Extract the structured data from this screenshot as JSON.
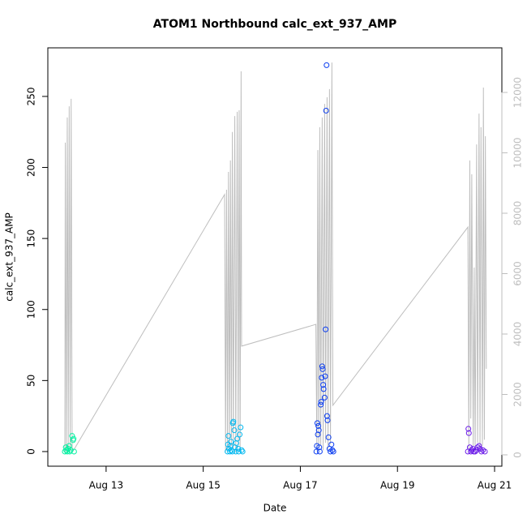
{
  "chart_data": {
    "type": "scatter-line",
    "title": "ATOM1 Northbound calc_ext_937_AMP",
    "xlabel": "Date",
    "ylabel": "calc_ext_937_AMP",
    "xlim": [
      11.8,
      21.15
    ],
    "xticks": [
      {
        "value": 13,
        "label": "Aug 13"
      },
      {
        "value": 15,
        "label": "Aug 15"
      },
      {
        "value": 17,
        "label": "Aug 17"
      },
      {
        "value": 19,
        "label": "Aug 19"
      },
      {
        "value": 21,
        "label": "Aug 21"
      }
    ],
    "ylim": [
      -10.3,
      284.2
    ],
    "yticks": [
      0,
      50,
      100,
      150,
      200,
      250
    ],
    "y2lim": [
      -376,
      13477
    ],
    "y2ticks": [
      0,
      2000,
      4000,
      6000,
      8000,
      10000,
      12000
    ],
    "y2color": "#bebebe",
    "line": {
      "axis": "y2",
      "color": "#bebebe",
      "x": [
        12.15,
        12.16,
        12.18,
        12.2,
        12.22,
        12.24,
        12.26,
        12.28,
        12.3,
        12.33,
        15.44,
        15.46,
        15.48,
        15.5,
        15.52,
        15.54,
        15.56,
        15.58,
        15.6,
        15.62,
        15.65,
        15.67,
        15.7,
        15.72,
        15.74,
        15.76,
        15.78,
        15.79,
        17.32,
        17.34,
        17.36,
        17.38,
        17.4,
        17.42,
        17.45,
        17.47,
        17.5,
        17.52,
        17.55,
        17.57,
        17.6,
        17.62,
        17.65,
        17.67,
        20.45,
        20.47,
        20.49,
        20.51,
        20.53,
        20.56,
        20.58,
        20.6,
        20.63,
        20.65,
        20.68,
        20.7,
        20.72,
        20.75,
        20.77,
        20.79,
        20.81,
        20.83
      ],
      "values": [
        100,
        10340,
        100,
        11170,
        150,
        11540,
        120,
        11790,
        200,
        150,
        8620,
        100,
        8780,
        200,
        9370,
        150,
        9750,
        300,
        10690,
        200,
        11220,
        100,
        11360,
        250,
        11410,
        150,
        12700,
        3600,
        4320,
        150,
        10090,
        200,
        10850,
        300,
        11170,
        150,
        11620,
        400,
        11840,
        200,
        12110,
        350,
        12990,
        1640,
        7540,
        200,
        9750,
        1200,
        9290,
        300,
        6200,
        150,
        10280,
        400,
        11300,
        200,
        10850,
        300,
        12160,
        500,
        10550,
        2850
      ]
    },
    "points": [
      {
        "color": "#00f0a0",
        "x": [
          12.15,
          12.17,
          12.18,
          12.2,
          12.22,
          12.24,
          12.25,
          12.27,
          12.3,
          12.32,
          12.33,
          12.34
        ],
        "values": [
          0,
          3,
          1,
          0,
          2,
          4,
          0,
          1,
          11,
          8,
          9,
          0
        ]
      },
      {
        "color": "#00b8f0",
        "x": [
          15.5,
          15.51,
          15.52,
          15.53,
          15.55,
          15.56,
          15.57,
          15.58,
          15.6,
          15.61,
          15.62,
          15.64,
          15.65,
          15.67,
          15.68,
          15.7,
          15.72,
          15.73,
          15.75,
          15.77,
          15.79,
          15.81
        ],
        "values": [
          0,
          5,
          11,
          2,
          0,
          4,
          7,
          1,
          0,
          20,
          21,
          15,
          3,
          0,
          6,
          9,
          2,
          0,
          12,
          17,
          1,
          0
        ]
      },
      {
        "color": "#0a3cf0",
        "x": [
          17.33,
          17.34,
          17.35,
          17.36,
          17.37,
          17.38,
          17.39,
          17.4,
          17.42,
          17.43,
          17.44,
          17.45,
          17.46,
          17.47,
          17.48,
          17.5,
          17.51,
          17.52,
          17.53,
          17.54,
          17.55,
          17.56,
          17.58,
          17.6,
          17.62,
          17.64,
          17.66,
          17.68
        ],
        "values": [
          0,
          4,
          20,
          12,
          18,
          15,
          3,
          0,
          33,
          35,
          52,
          60,
          58,
          47,
          44,
          38,
          53,
          86,
          240,
          272,
          25,
          22,
          10,
          2,
          0,
          5,
          1,
          0
        ]
      },
      {
        "color": "#6a1ae8",
        "x": [
          20.45,
          20.46,
          20.47,
          20.49,
          20.51,
          20.53,
          20.55,
          20.57,
          20.6,
          20.62,
          20.65,
          20.68,
          20.7,
          20.73,
          20.76,
          20.8
        ],
        "values": [
          0,
          16,
          13,
          3,
          0,
          1,
          2,
          0,
          0,
          1,
          3,
          4,
          2,
          0,
          1,
          0
        ]
      }
    ]
  }
}
